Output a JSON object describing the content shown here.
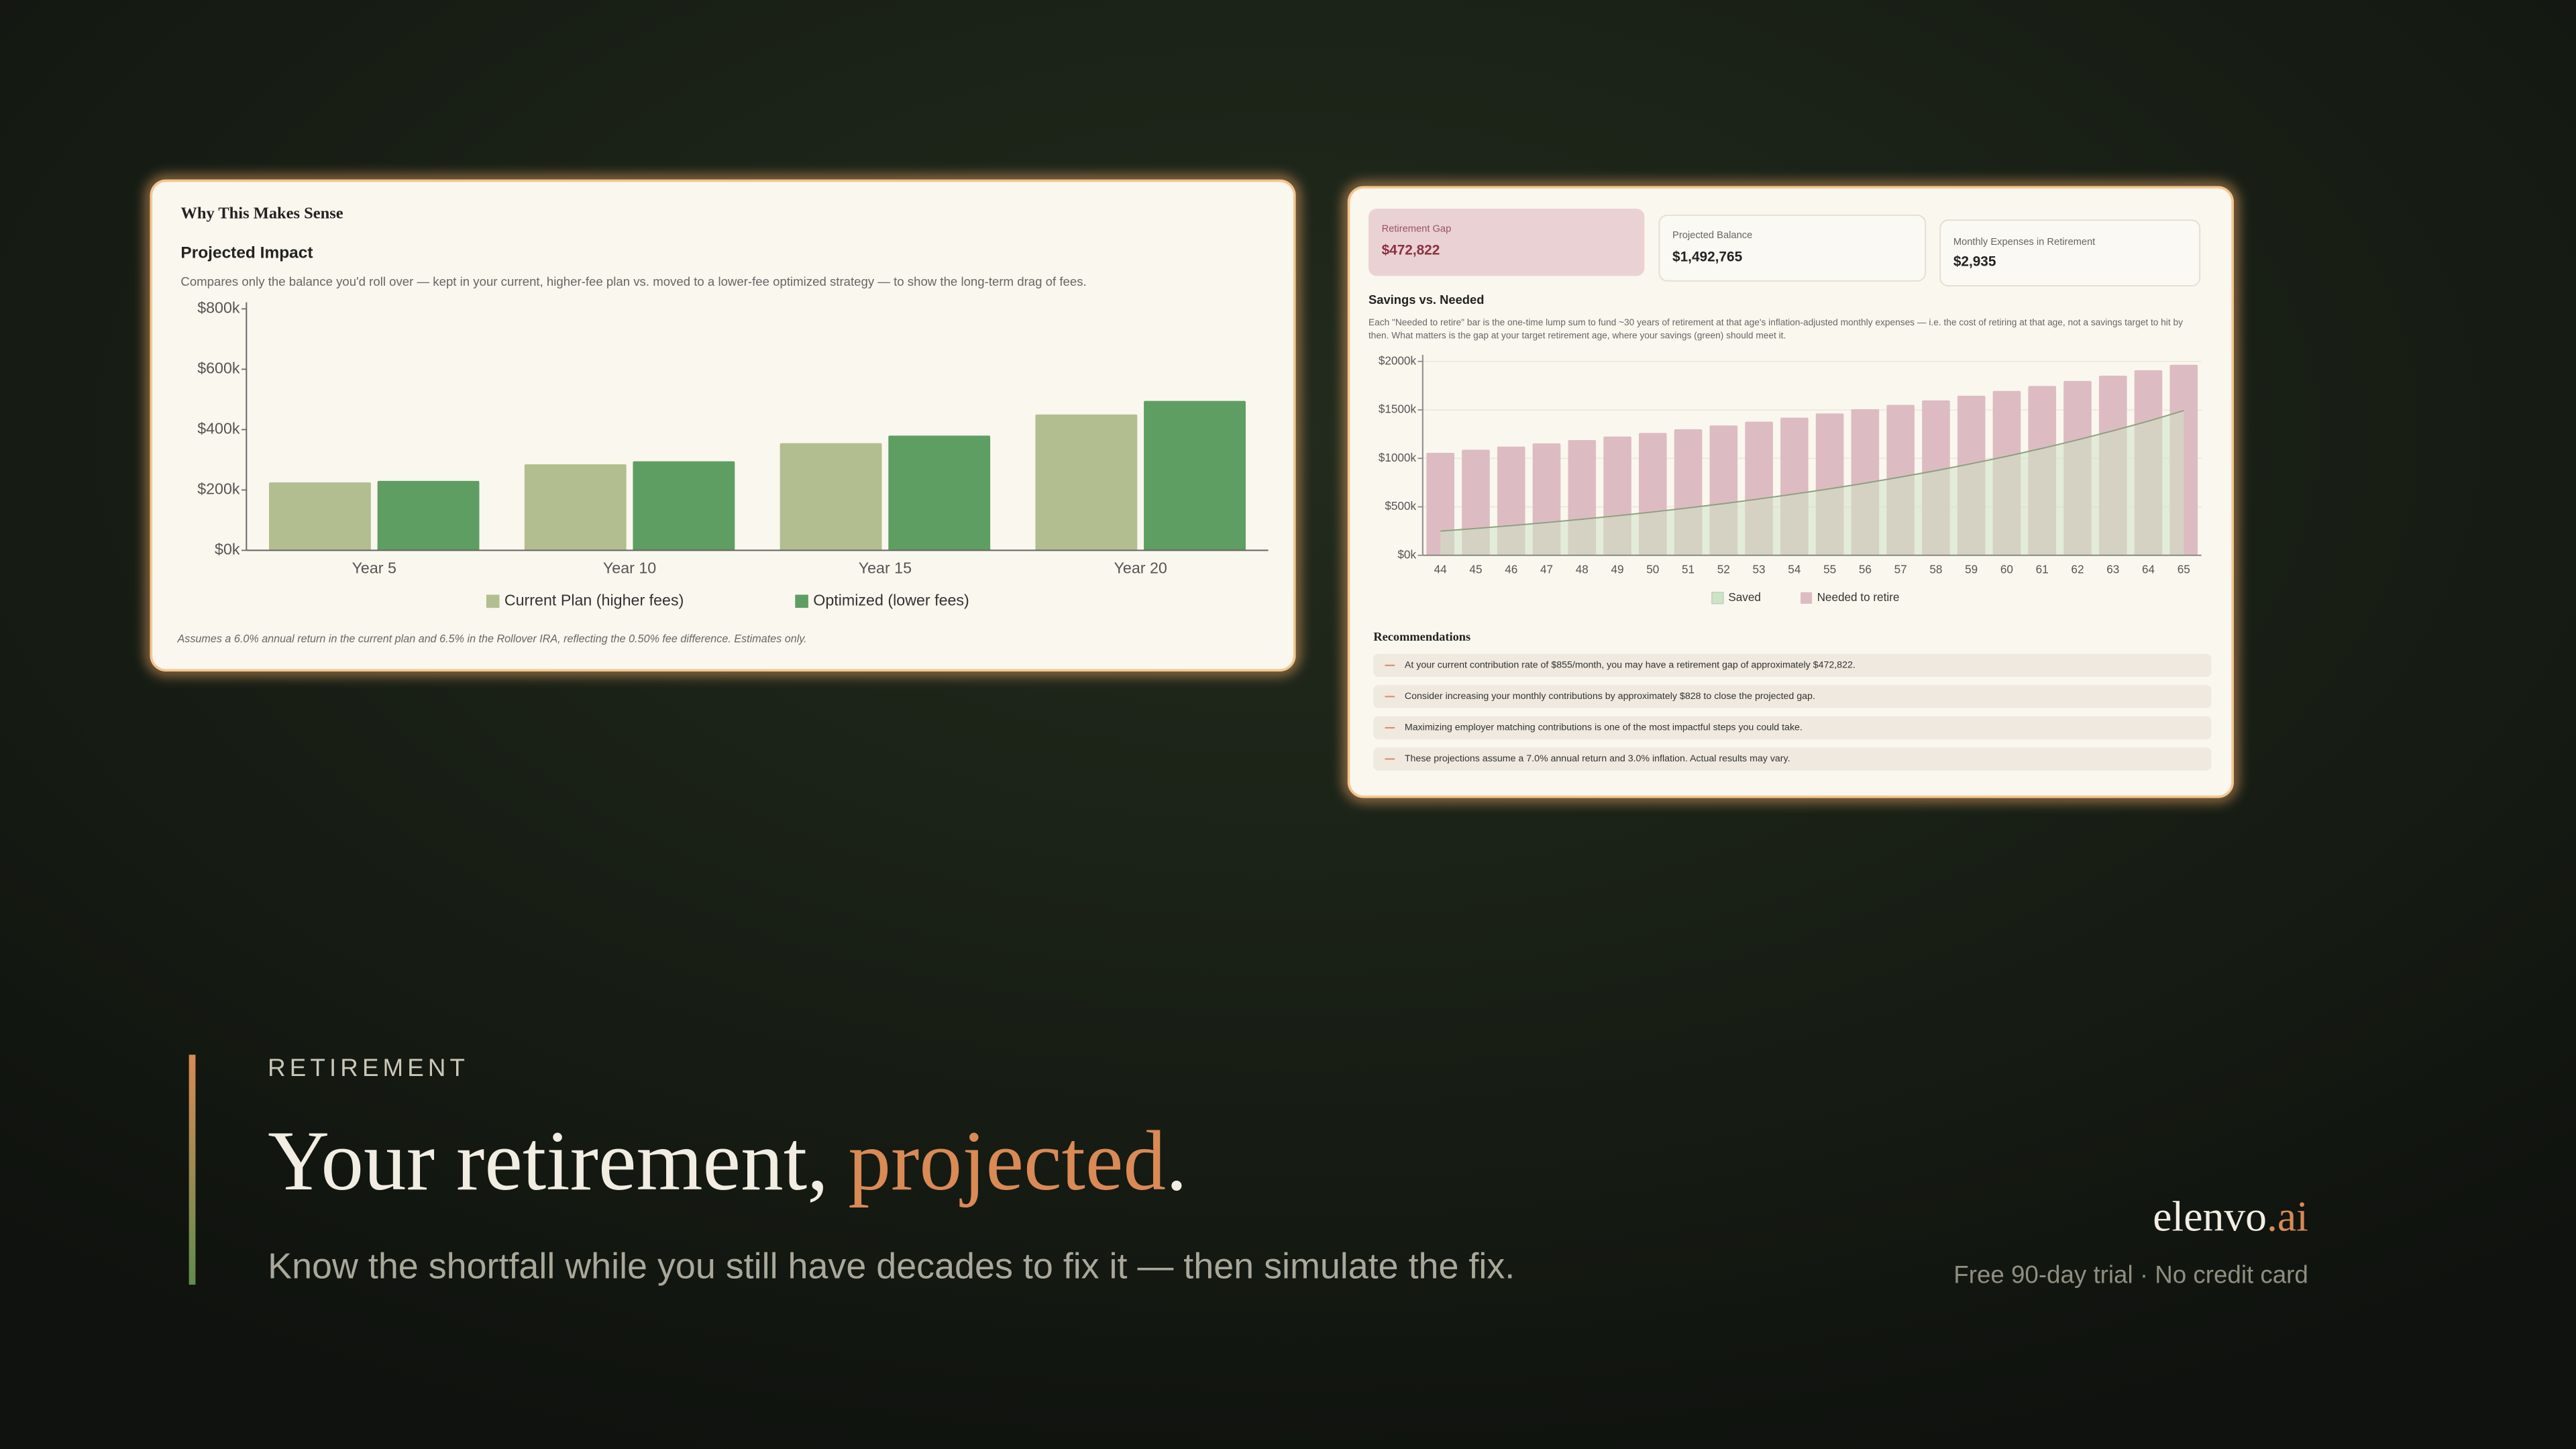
{
  "left_card": {
    "heading": "Why This Makes Sense",
    "footnote": "Assumes a 6.0% annual return in the current plan and 6.5% in the Rollover IRA, reflecting the 0.50% fee difference. Estimates only."
  },
  "right_card": {
    "kpis": [
      {
        "label": "Retirement Gap",
        "value": "$472,822"
      },
      {
        "label": "Projected Balance",
        "value": "$1,492,765"
      },
      {
        "label": "Monthly Expenses in Retirement",
        "value": "$2,935"
      }
    ],
    "recommendations_title": "Recommendations",
    "recommendations": [
      "At your current contribution rate of $855/month, you may have a retirement gap of approximately $472,822.",
      "Consider increasing your monthly contributions by approximately $828 to close the projected gap.",
      "Maximizing employer matching contributions is one of the most impactful steps you could take.",
      "These projections assume a 7.0% annual return and 3.0% inflation. Actual results may vary."
    ]
  },
  "hero": {
    "eyebrow": "RETIREMENT",
    "headline_start": "Your retirement,",
    "headline_accent": "projected",
    "headline_end": ".",
    "subtitle": "Know the shortfall while you still have decades to fix it — then simulate the fix."
  },
  "brand": {
    "name": "elenvo",
    "suffix": ".ai",
    "tagline": "Free 90-day trial · No credit card"
  },
  "chart_data": [
    {
      "type": "bar",
      "title": "Projected Impact",
      "subtitle": "Compares only the balance you'd roll over — kept in your current, higher-fee plan vs. moved to a lower-fee optimized strategy — to show the long-term drag of fees.",
      "categories": [
        "Year 5",
        "Year 10",
        "Year 15",
        "Year 20"
      ],
      "series": [
        {
          "name": "Current Plan (higher fees)",
          "color": "#b2be8f",
          "values": [
            225,
            285,
            355,
            450
          ]
        },
        {
          "name": "Optimized (lower fees)",
          "color": "#5e9e62",
          "values": [
            230,
            295,
            380,
            495
          ]
        }
      ],
      "ylim": [
        0,
        800
      ],
      "yticks": [
        {
          "value": 0,
          "label": "$0k"
        },
        {
          "value": 200,
          "label": "$200k"
        },
        {
          "value": 400,
          "label": "$400k"
        },
        {
          "value": 600,
          "label": "$600k"
        },
        {
          "value": 800,
          "label": "$800k"
        }
      ],
      "grid": false,
      "legend": "bottom"
    },
    {
      "type": "bar",
      "title": "Savings vs. Needed",
      "subtitle": "Each \"Needed to retire\" bar is the one-time lump sum to fund ~30 years of retirement at that age's inflation-adjusted monthly expenses — i.e. the cost of retiring at that age, not a savings target to hit by then. What matters is the gap at your target retirement age, where your savings (green) should meet it.",
      "categories": [
        44,
        45,
        46,
        47,
        48,
        49,
        50,
        51,
        52,
        53,
        54,
        55,
        56,
        57,
        58,
        59,
        60,
        61,
        62,
        63,
        64,
        65
      ],
      "series": [
        {
          "name": "Saved",
          "type": "area",
          "color": "#cfe3c6",
          "values": [
            249,
            277,
            306,
            338,
            372,
            408,
            447,
            489,
            533,
            581,
            632,
            686,
            744,
            807,
            873,
            945,
            1021,
            1103,
            1191,
            1284,
            1384,
            1493
          ]
        },
        {
          "name": "Needed to retire",
          "color": "#dcbcc2",
          "values": [
            1057,
            1089,
            1121,
            1155,
            1189,
            1225,
            1262,
            1300,
            1339,
            1379,
            1420,
            1463,
            1507,
            1552,
            1598,
            1646,
            1696,
            1747,
            1799,
            1853,
            1909,
            1966
          ]
        }
      ],
      "ylim": [
        0,
        2000
      ],
      "yticks": [
        {
          "value": 0,
          "label": "$0k"
        },
        {
          "value": 500,
          "label": "$500k"
        },
        {
          "value": 1000,
          "label": "$1000k"
        },
        {
          "value": 1500,
          "label": "$1500k"
        },
        {
          "value": 2000,
          "label": "$2000k"
        }
      ],
      "grid": true,
      "legend": "bottom"
    }
  ]
}
